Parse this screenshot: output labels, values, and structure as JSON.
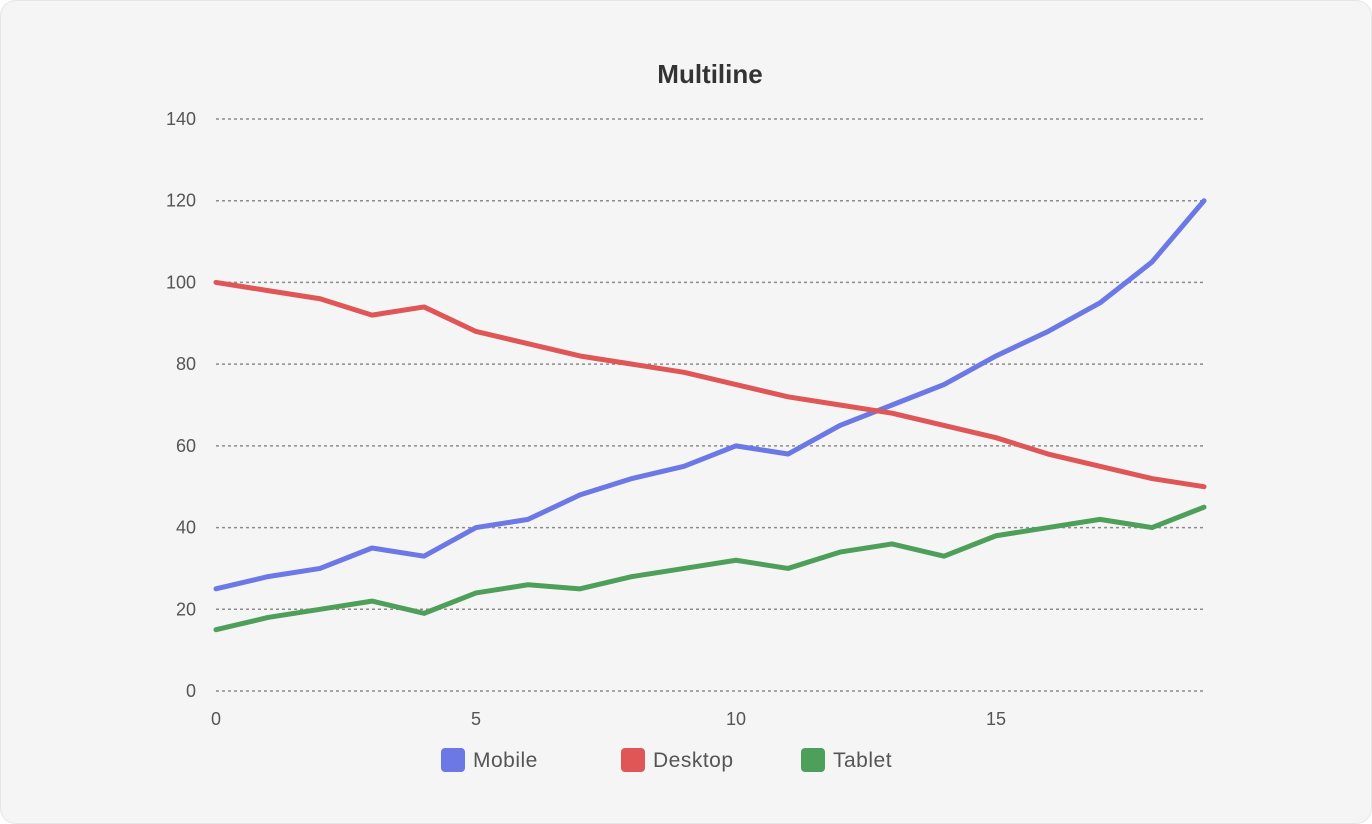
{
  "chart_data": {
    "type": "line",
    "title": "Multiline",
    "xlabel": "",
    "ylabel": "",
    "x": [
      0,
      1,
      2,
      3,
      4,
      5,
      6,
      7,
      8,
      9,
      10,
      11,
      12,
      13,
      14,
      15,
      16,
      17,
      18,
      19
    ],
    "xlim": [
      0,
      19
    ],
    "ylim": [
      0,
      140
    ],
    "xticks": [
      0,
      5,
      10,
      15
    ],
    "yticks": [
      0,
      20,
      40,
      60,
      80,
      100,
      120,
      140
    ],
    "grid": "horizontal dashed",
    "legend": "bottom",
    "series": [
      {
        "name": "Mobile",
        "color": "#6b78e6",
        "values": [
          25,
          28,
          30,
          35,
          33,
          40,
          42,
          48,
          52,
          55,
          60,
          58,
          65,
          70,
          75,
          82,
          88,
          95,
          105,
          120
        ]
      },
      {
        "name": "Desktop",
        "color": "#e05555",
        "values": [
          100,
          98,
          96,
          92,
          94,
          88,
          85,
          82,
          80,
          78,
          75,
          72,
          70,
          68,
          65,
          62,
          58,
          55,
          52,
          50
        ]
      },
      {
        "name": "Tablet",
        "color": "#4e9f5a",
        "values": [
          15,
          18,
          20,
          22,
          19,
          24,
          26,
          25,
          28,
          30,
          32,
          30,
          34,
          36,
          33,
          38,
          40,
          42,
          40,
          45
        ]
      }
    ]
  }
}
